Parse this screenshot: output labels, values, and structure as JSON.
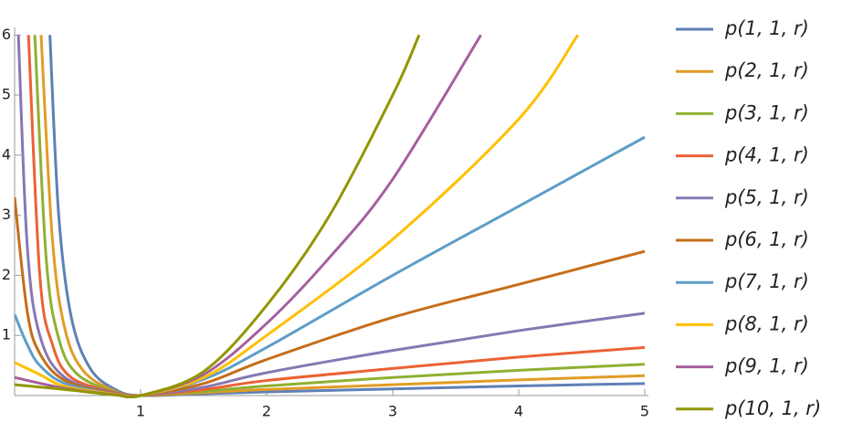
{
  "chart_data": {
    "type": "line",
    "xlim": [
      0,
      5
    ],
    "ylim": [
      0,
      6.05
    ],
    "xticks": [
      1,
      2,
      3,
      4,
      5
    ],
    "yticks": [
      1,
      2,
      3,
      4,
      5,
      6
    ],
    "legend": "right",
    "series": [
      {
        "name": "p(1, 1, r)",
        "color": "#5E81B5",
        "x": [
          0.28,
          0.35,
          0.45,
          0.6,
          0.8,
          1,
          1.5,
          2,
          3,
          4,
          5
        ],
        "values": [
          6,
          3,
          1.3,
          0.45,
          0.1,
          0,
          0.03,
          0.06,
          0.11,
          0.16,
          0.2
        ]
      },
      {
        "name": "p(2, 1, r)",
        "color": "#E19C24",
        "x": [
          0.21,
          0.3,
          0.4,
          0.55,
          0.8,
          1,
          1.5,
          2,
          3,
          4,
          5
        ],
        "values": [
          6,
          2.6,
          1.1,
          0.4,
          0.07,
          0,
          0.05,
          0.1,
          0.18,
          0.26,
          0.33
        ]
      },
      {
        "name": "p(3, 1, r)",
        "color": "#8FB032",
        "x": [
          0.16,
          0.25,
          0.35,
          0.5,
          0.8,
          1,
          1.5,
          2,
          3,
          4,
          5
        ],
        "values": [
          6,
          2.3,
          0.95,
          0.35,
          0.06,
          0,
          0.07,
          0.16,
          0.3,
          0.42,
          0.52
        ]
      },
      {
        "name": "p(4, 1, r)",
        "color": "#EB6235",
        "x": [
          0.11,
          0.2,
          0.3,
          0.45,
          0.8,
          1,
          1.5,
          2,
          3,
          4,
          5
        ],
        "values": [
          6,
          2,
          0.85,
          0.3,
          0.05,
          0,
          0.1,
          0.25,
          0.45,
          0.64,
          0.8
        ]
      },
      {
        "name": "p(5, 1, r)",
        "color": "#8778B3",
        "x": [
          0.03,
          0.1,
          0.2,
          0.4,
          0.8,
          1,
          1.5,
          2,
          3,
          4,
          5
        ],
        "values": [
          6,
          2.5,
          1,
          0.3,
          0.04,
          0,
          0.14,
          0.38,
          0.75,
          1.08,
          1.37
        ]
      },
      {
        "name": "p(6, 1, r)",
        "color": "#C56E1A",
        "x": [
          0,
          0.1,
          0.2,
          0.4,
          0.8,
          1,
          1.5,
          2,
          3,
          4,
          5
        ],
        "values": [
          3.3,
          1.4,
          0.7,
          0.25,
          0.03,
          0,
          0.2,
          0.6,
          1.3,
          1.85,
          2.4
        ]
      },
      {
        "name": "p(7, 1, r)",
        "color": "#5D9EC7",
        "x": [
          0,
          0.1,
          0.2,
          0.4,
          0.8,
          1,
          1.5,
          2,
          3,
          4,
          5
        ],
        "values": [
          1.35,
          0.85,
          0.5,
          0.2,
          0.02,
          0,
          0.27,
          0.8,
          2,
          3.15,
          4.3
        ]
      },
      {
        "name": "p(8, 1, r)",
        "color": "#FFBF00",
        "x": [
          0,
          0.2,
          0.4,
          0.8,
          1,
          1.5,
          2,
          3,
          4,
          4.47
        ],
        "values": [
          0.55,
          0.35,
          0.15,
          0.02,
          0,
          0.3,
          1.0,
          2.6,
          4.6,
          6
        ]
      },
      {
        "name": "p(9, 1, r)",
        "color": "#A5609D",
        "x": [
          0,
          0.4,
          0.8,
          1,
          1.5,
          2,
          2.5,
          3,
          3.7
        ],
        "values": [
          0.3,
          0.12,
          0.015,
          0,
          0.35,
          1.2,
          2.3,
          3.6,
          6
        ]
      },
      {
        "name": "p(10, 1, r)",
        "color": "#929600",
        "x": [
          0,
          0.4,
          0.8,
          1,
          1.5,
          2,
          2.5,
          3,
          3.21
        ],
        "values": [
          0.18,
          0.1,
          0.01,
          0,
          0.4,
          1.5,
          3,
          5,
          6
        ]
      }
    ]
  }
}
